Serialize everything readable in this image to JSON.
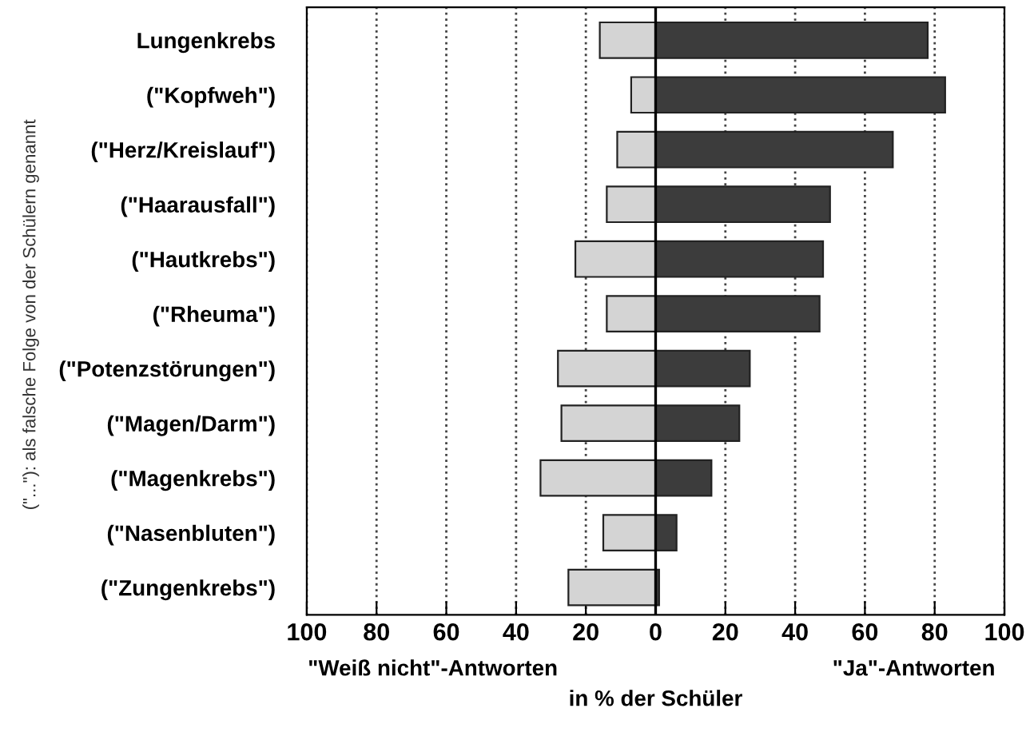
{
  "chart_data": {
    "type": "bar",
    "orientation": "horizontal",
    "xlabel": "in % der Schüler",
    "ylabel": "(\"...\"): als falsche Folge von der Schülern genannt",
    "categories": [
      "Lungenkrebs",
      "(\"Kopfweh\")",
      "(\"Herz/Kreislauf\")",
      "(\"Haarausfall\")",
      "(\"Hautkrebs\")",
      "(\"Rheuma\")",
      "(\"Potenzstörungen\")",
      "(\"Magen/Darm\")",
      "(\"Magenkrebs\")",
      "(\"Nasenbluten\")",
      "(\"Zungenkrebs\")"
    ],
    "series": [
      {
        "color": "#d4d4d4",
        "values": [
          -16,
          -7,
          -11,
          -14,
          -23,
          -14,
          -28,
          -27,
          -33,
          -15,
          -25
        ]
      },
      {
        "color": "#3c3c3c",
        "values": [
          78,
          83,
          68,
          50,
          48,
          47,
          27,
          24,
          16,
          6,
          1
        ]
      }
    ],
    "xlim": [
      -100,
      100
    ],
    "xticks": [
      {
        "value": -100,
        "label": "100"
      },
      {
        "value": -80,
        "label": "80"
      },
      {
        "value": -60,
        "label": "60"
      },
      {
        "value": -40,
        "label": "40"
      },
      {
        "value": -20,
        "label": "20"
      },
      0,
      20,
      40,
      60,
      80,
      100
    ],
    "ref_lines": [
      {
        "axis": "x",
        "value": 0,
        "color": "#000000",
        "line_style": "solid"
      }
    ],
    "annotations": [
      "\"Weiß nicht\"-Antworten",
      "\"Ja\"-Antworten"
    ],
    "stacked": true,
    "grid": "x"
  }
}
